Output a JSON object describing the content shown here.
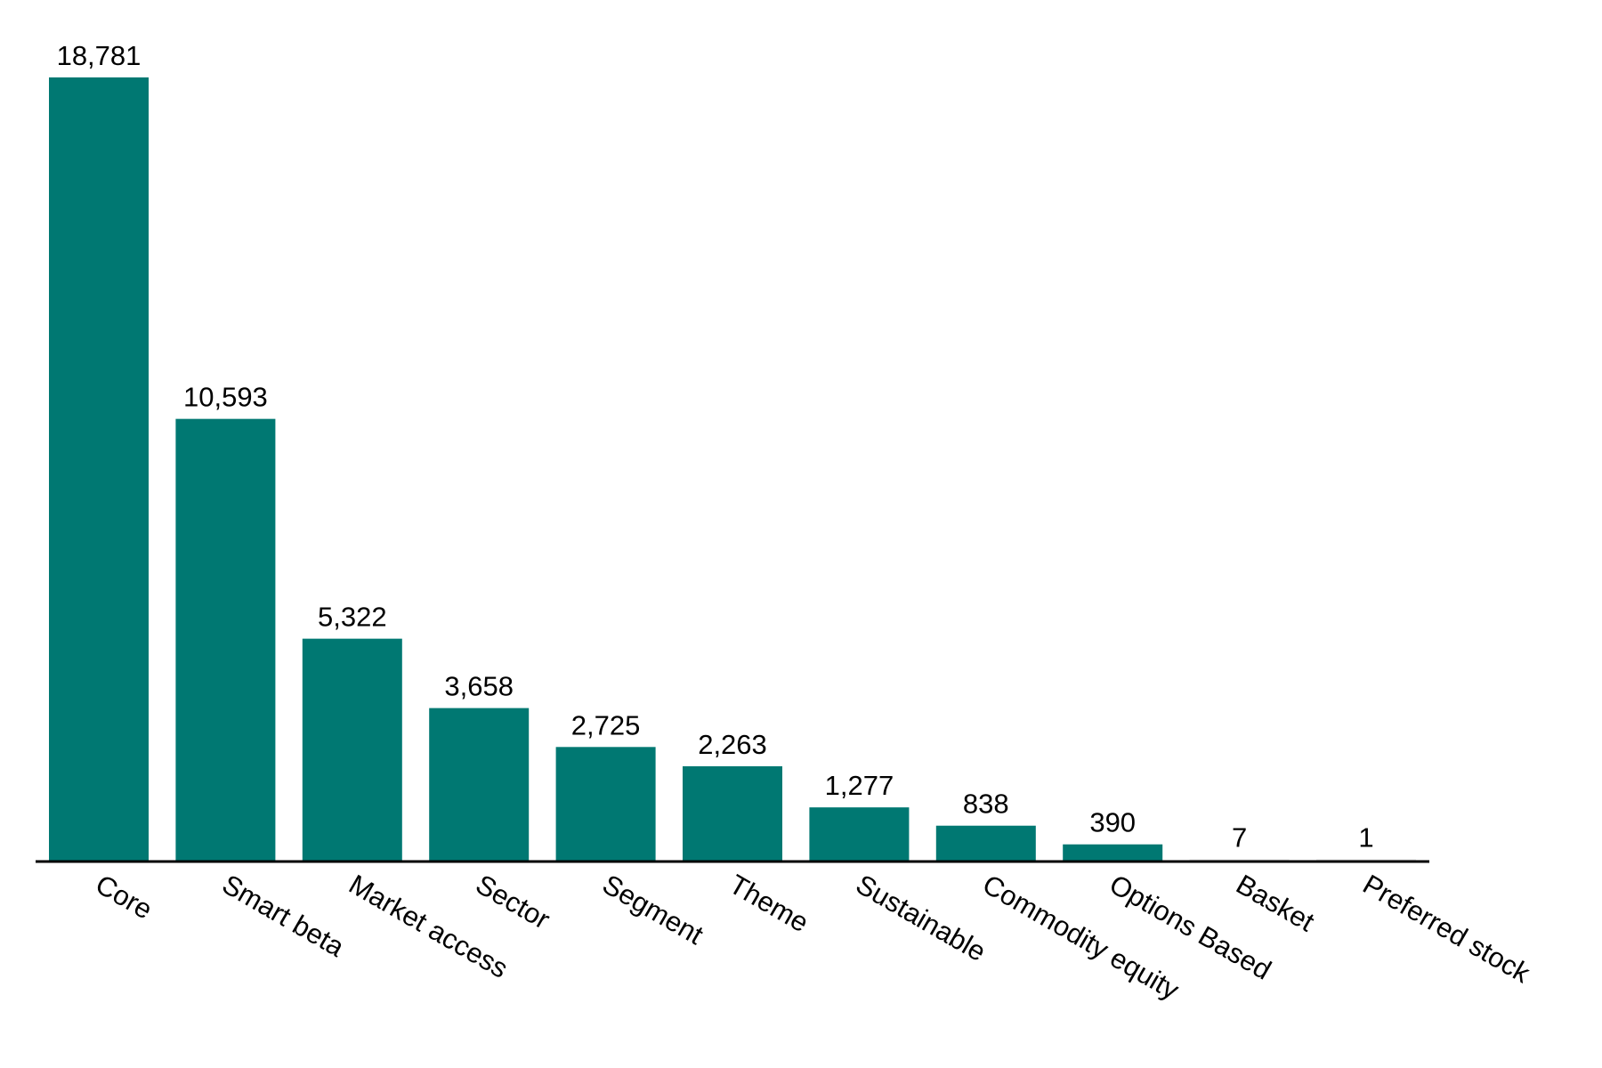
{
  "chart_data": {
    "type": "bar",
    "title": "",
    "xlabel": "",
    "ylabel": "",
    "categories": [
      "Core",
      "Smart beta",
      "Market access",
      "Sector",
      "Segment",
      "Theme",
      "Sustainable",
      "Commodity equity",
      "Options Based",
      "Basket",
      "Preferred stock"
    ],
    "values": [
      18781,
      10593,
      5322,
      3658,
      2725,
      2263,
      1277,
      838,
      390,
      7,
      1
    ],
    "value_labels": [
      "18,781",
      "10,593",
      "5,322",
      "3,658",
      "2,725",
      "2,263",
      "1,277",
      "838",
      "390",
      "7",
      "1"
    ],
    "ylim": [
      0,
      18781
    ],
    "grid": false,
    "legend": "none",
    "bar_color": "#007872",
    "axis_color": "#000000"
  }
}
